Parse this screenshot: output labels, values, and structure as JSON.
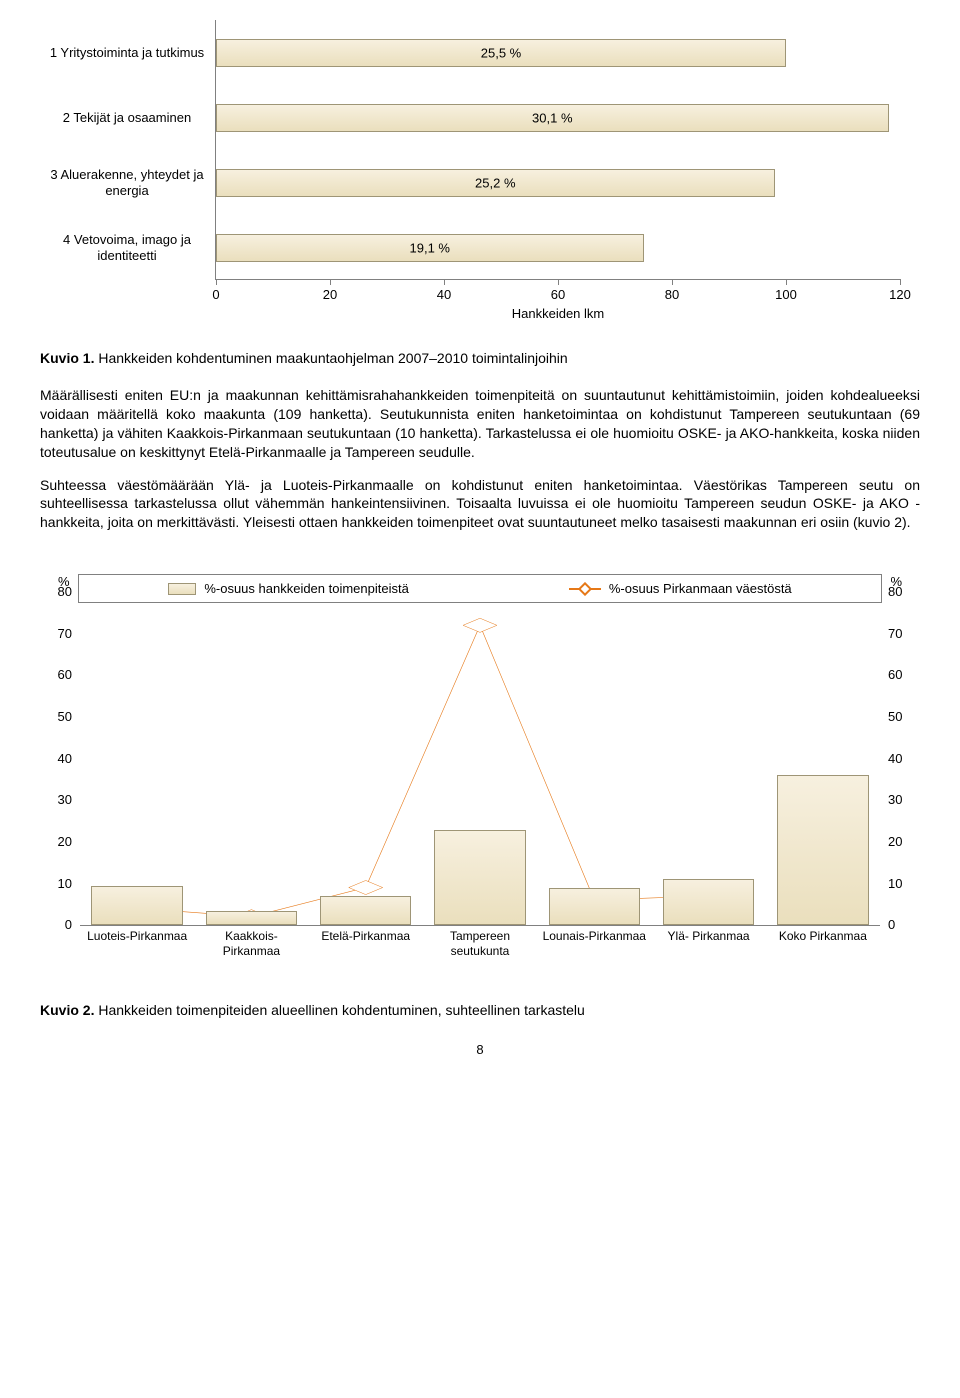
{
  "chart1": {
    "type": "bar-horizontal",
    "xlim": [
      0,
      120
    ],
    "xtick_step": 20,
    "xticks": [
      0,
      20,
      40,
      60,
      80,
      100,
      120
    ],
    "xlabel": "Hankkeiden lkm",
    "bar_color_top": "#f7f0df",
    "bar_color_bottom": "#eadfbd",
    "bar_border": "#9e9576",
    "rows": [
      {
        "label": "1 Yritystoiminta ja tutkimus",
        "value": 100,
        "value_label": "25,5 %"
      },
      {
        "label": "2 Tekijät ja osaaminen",
        "value": 118,
        "value_label": "30,1 %"
      },
      {
        "label": "3 Aluerakenne, yhteydet ja energia",
        "value": 98,
        "value_label": "25,2 %"
      },
      {
        "label": "4 Vetovoima, imago ja identiteetti",
        "value": 75,
        "value_label": "19,1 %"
      }
    ]
  },
  "caption1_prefix": "Kuvio 1.",
  "caption1_text": " Hankkeiden kohdentuminen maakuntaohjelman 2007–2010 toimintalinjoihin",
  "para1": "Määrällisesti eniten EU:n ja maakunnan kehittämisrahahankkeiden toimenpiteitä on suuntautunut kehittämistoimiin, joiden kohdealueeksi voidaan määritellä koko maakunta (109 hanketta). Seutukunnista eniten hanketoimintaa on kohdistunut Tampereen seutukuntaan (69 hanketta) ja vähiten Kaakkois-Pirkanmaan seutukuntaan (10 hanketta). Tarkastelussa ei ole huomioitu OSKE- ja AKO-hankkeita, koska niiden toteutusalue on keskittynyt Etelä-Pirkanmaalle ja Tampereen seudulle.",
  "para2": "Suhteessa väestömäärään Ylä- ja Luoteis-Pirkanmaalle on kohdistunut eniten hanketoimintaa. Väestörikas Tampereen seutu on suhteellisessa tarkastelussa ollut vähemmän hankeintensiivinen. Toisaalta luvuissa ei ole huomioitu Tampereen seudun OSKE- ja AKO -hankkeita, joita on merkittävästi. Yleisesti ottaen hankkeiden toimenpiteet ovat suuntautuneet melko tasaisesti maakunnan eri osiin (kuvio 2).",
  "chart2": {
    "type": "bar+line",
    "ylim": [
      0,
      80
    ],
    "ytick_step": 10,
    "yticks": [
      0,
      10,
      20,
      30,
      40,
      50,
      60,
      70,
      80
    ],
    "ylabel": "%",
    "bar_color_top": "#f7f0df",
    "bar_color_bottom": "#eadfbd",
    "bar_border": "#9e9576",
    "line_color": "#e67817",
    "line_width": 2,
    "marker_fill": "#ffffff",
    "categories": [
      {
        "label": "Luoteis-Pirkanmaa",
        "wrap": true,
        "bar": 9.5,
        "line": 4
      },
      {
        "label": "Kaakkois-Pirkanmaa",
        "wrap": true,
        "bar": 3.5,
        "line": 2
      },
      {
        "label": "Etelä-Pirkanmaa",
        "wrap": false,
        "bar": 7,
        "line": 9
      },
      {
        "label": "Tampereen seutukunta",
        "wrap": true,
        "bar": 23,
        "line": 72
      },
      {
        "label": "Lounais-Pirkanmaa",
        "wrap": true,
        "bar": 9,
        "line": 6
      },
      {
        "label": "Ylä- Pirkanmaa",
        "wrap": false,
        "bar": 11,
        "line": 7
      },
      {
        "label": "Koko Pirkanmaa",
        "wrap": false,
        "bar": 36,
        "line": null
      }
    ],
    "legend": {
      "bar": "%-osuus hankkeiden toimenpiteistä",
      "line": "%-osuus Pirkanmaan väestöstä"
    }
  },
  "caption2_prefix": "Kuvio 2.",
  "caption2_text": " Hankkeiden toimenpiteiden alueellinen kohdentuminen, suhteellinen tarkastelu",
  "page_number": "8"
}
